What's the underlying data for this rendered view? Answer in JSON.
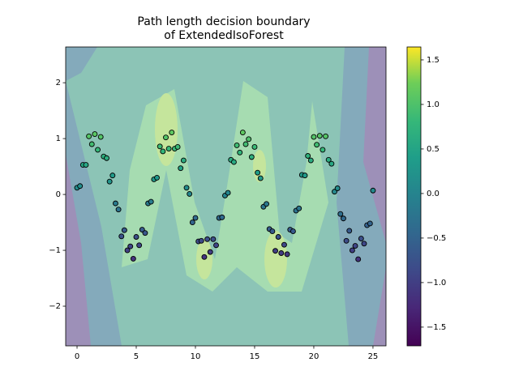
{
  "chart_data": {
    "type": "scatter",
    "title": [
      "Path length decision boundary",
      "of ExtendedIsoForest"
    ],
    "xlim": [
      -0.96,
      26.1
    ],
    "xticks": [
      0,
      5,
      10,
      15,
      20,
      25
    ],
    "ylim": [
      -2.71,
      2.64
    ],
    "yticks": [
      {
        "value": -2,
        "label": "−2"
      },
      {
        "value": -1,
        "label": "−1"
      },
      {
        "value": 0,
        "label": "0"
      },
      {
        "value": 1,
        "label": "1"
      },
      {
        "value": 2,
        "label": "2"
      }
    ],
    "colormap": "viridis",
    "color_by": "y",
    "colorbar": {
      "lim": [
        -1.71,
        1.645
      ],
      "ticks": [
        {
          "value": -1.5,
          "label": "−1.5"
        },
        {
          "value": -1,
          "label": "−1.0"
        },
        {
          "value": -0.5,
          "label": "−0.5"
        },
        {
          "value": 0,
          "label": "0.0"
        },
        0.5,
        {
          "value": 1,
          "label": "1.0"
        },
        1.5
      ]
    },
    "series": [
      {
        "x": [
          0,
          0.25,
          0.5,
          0.75,
          1,
          1.25,
          1.5,
          1.75,
          2,
          2.25,
          2.5,
          2.75,
          3,
          3.25,
          3.5,
          3.75,
          4,
          4.25,
          4.5,
          4.75,
          5,
          5.25,
          5.5,
          5.75,
          6,
          6.25,
          6.5,
          6.75,
          7,
          7.25,
          7.5,
          7.75,
          8,
          8.25,
          8.5,
          8.75,
          9,
          9.25,
          9.5,
          9.75,
          10,
          10.25,
          10.5,
          10.75,
          11,
          11.25,
          11.5,
          11.75,
          12,
          12.25,
          12.5,
          12.75,
          13,
          13.25,
          13.5,
          13.75,
          14,
          14.25,
          14.5,
          14.75,
          15,
          15.25,
          15.5,
          15.75,
          16,
          16.25,
          16.5,
          16.75,
          17,
          17.25,
          17.5,
          17.75,
          18,
          18.25,
          18.5,
          18.75,
          19,
          19.25,
          19.5,
          19.75,
          20,
          20.25,
          20.5,
          20.75,
          21,
          21.25,
          21.5,
          21.75,
          22,
          22.25,
          22.5,
          22.75,
          23,
          23.25,
          23.5,
          23.75,
          24,
          24.25,
          24.5,
          24.75,
          25
        ],
        "values": [
          0.12,
          0.15,
          0.53,
          0.53,
          1.04,
          0.9,
          1.08,
          0.8,
          1.03,
          0.68,
          0.65,
          0.23,
          0.34,
          -0.16,
          -0.27,
          -0.75,
          -0.64,
          -1.0,
          -0.93,
          -1.15,
          -0.76,
          -0.91,
          -0.63,
          -0.69,
          -0.16,
          -0.13,
          0.27,
          0.3,
          0.86,
          0.77,
          1.02,
          0.82,
          1.11,
          0.82,
          0.85,
          0.47,
          0.61,
          0.12,
          0.01,
          -0.5,
          -0.42,
          -0.84,
          -0.83,
          -1.12,
          -0.8,
          -1.03,
          -0.8,
          -0.91,
          -0.42,
          -0.41,
          -0.02,
          0.03,
          0.62,
          0.58,
          0.88,
          0.75,
          1.11,
          0.9,
          0.99,
          0.67,
          0.85,
          0.39,
          0.29,
          -0.22,
          -0.17,
          -0.62,
          -0.66,
          -1.01,
          -0.76,
          -1.05,
          -0.9,
          -1.07,
          -0.63,
          -0.66,
          -0.29,
          -0.25,
          0.35,
          0.34,
          0.69,
          0.61,
          1.03,
          0.89,
          1.05,
          0.8,
          1.04,
          0.62,
          0.55,
          0.05,
          0.11,
          -0.35,
          -0.43,
          -0.83,
          -0.65,
          -1.0,
          -0.92,
          -1.16,
          -0.79,
          -0.88,
          -0.55,
          -0.52,
          0.07
        ]
      }
    ]
  }
}
